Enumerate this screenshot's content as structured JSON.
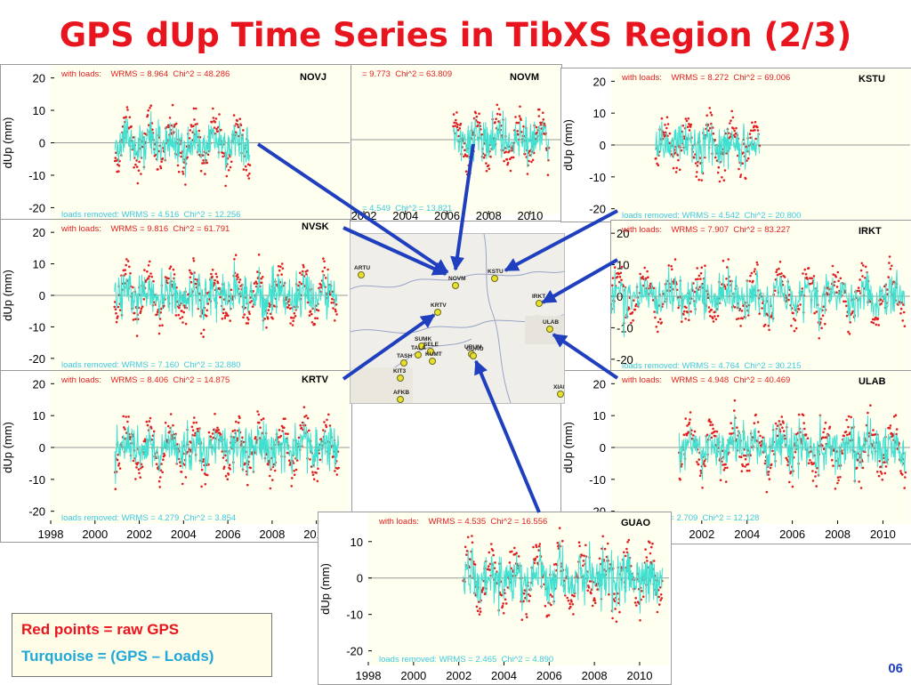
{
  "title": "GPS dUp Time Series in TibXS Region (2/3)",
  "slide_number": "06",
  "legend": {
    "red_label": "Red points = raw GPS",
    "turquoise_label": "Turquoise = (GPS – Loads)"
  },
  "colors": {
    "raw": "#e02020",
    "corrected": "#40e0d0",
    "title": "#e8151e",
    "arrow": "#1f3fbf",
    "plot_bg": "#fffff0"
  },
  "map": {
    "markers": [
      "ARTU",
      "NOVM",
      "KSTU",
      "IRKT",
      "KRTV",
      "ULAB",
      "SUMK",
      "SELE",
      "TALA",
      "KUMT",
      "TASH",
      "KIT3",
      "URUM",
      "GUAO",
      "AFKB",
      "XIAN"
    ]
  },
  "chart_data": [
    {
      "type": "scatter",
      "station": "NOVJ",
      "ylabel": "dUp (mm)",
      "ylim": [
        -24,
        24
      ],
      "yticks": [
        20,
        10,
        0,
        -10,
        -20
      ],
      "x_start": 2000.9,
      "x_end": 2007.0,
      "loads_text": "with loads:    WRMS = 8.964  Chi^2 = 48.286",
      "removed_text": "loads removed: WRMS = 4.516  Chi^2 = 12.256",
      "series": [
        {
          "name": "raw GPS"
        },
        {
          "name": "GPS – Loads"
        }
      ]
    },
    {
      "type": "scatter",
      "station": "NOVM",
      "ylabel": "",
      "ylim": [
        -24,
        24
      ],
      "yticks": [],
      "xticks": [
        2002,
        2004,
        2006,
        2008,
        2010
      ],
      "x_start": 2006.3,
      "x_end": 2010.9,
      "loads_text": "= 9.773  Chi^2 = 63.809",
      "removed_text": "= 4.549  Chi^2 = 13.821",
      "series": [
        {
          "name": "raw GPS"
        },
        {
          "name": "GPS – Loads"
        }
      ]
    },
    {
      "type": "scatter",
      "station": "KSTU",
      "ylabel": "dUp (mm)",
      "ylim": [
        -24,
        24
      ],
      "yticks": [
        20,
        10,
        0,
        -10,
        -20
      ],
      "x_start": 2000.0,
      "x_end": 2004.7,
      "loads_text": "with loads:    WRMS = 8.272  Chi^2 = 69.006",
      "removed_text": "loads removed: WRMS = 4.542  Chi^2 = 20.800",
      "series": [
        {
          "name": "raw GPS"
        },
        {
          "name": "GPS – Loads"
        }
      ]
    },
    {
      "type": "scatter",
      "station": "NVSK",
      "ylabel": "dUp (mm)",
      "ylim": [
        -24,
        24
      ],
      "yticks": [
        20,
        10,
        0,
        -10,
        -20
      ],
      "x_start": 2000.9,
      "x_end": 2011.0,
      "loads_text": "with loads:    WRMS = 9.816  Chi^2 = 61.791",
      "removed_text": "loads removed: WRMS = 7.160  Chi^2 = 32.880",
      "series": [
        {
          "name": "raw GPS"
        },
        {
          "name": "GPS – Loads"
        }
      ]
    },
    {
      "type": "scatter",
      "station": "IRKT",
      "ylabel": "",
      "ylim": [
        -24,
        24
      ],
      "yticks": [
        20,
        10,
        0,
        -10,
        -20
      ],
      "x_start": 1998.0,
      "x_end": 2011.0,
      "loads_text": "with loads:    WRMS = 7.907  Chi^2 = 83.227",
      "removed_text": "loads removed: WRMS = 4.764  Chi^2 = 30.215",
      "series": [
        {
          "name": "raw GPS"
        },
        {
          "name": "GPS – Loads"
        }
      ]
    },
    {
      "type": "scatter",
      "station": "KRTV",
      "ylabel": "dUp (mm)",
      "ylim": [
        -24,
        24
      ],
      "yticks": [
        20,
        10,
        0,
        -10,
        -20
      ],
      "xticks": [
        1998,
        2000,
        2002,
        2004,
        2006,
        2008,
        2010
      ],
      "x_start": 2000.9,
      "x_end": 2011.0,
      "loads_text": "with loads:    WRMS = 8.406  Chi^2 = 14.875",
      "removed_text": "loads removed: WRMS = 4.279  Chi^2 = 3.854",
      "series": [
        {
          "name": "raw GPS"
        },
        {
          "name": "GPS – Loads"
        }
      ]
    },
    {
      "type": "scatter",
      "station": "ULAB",
      "ylabel": "dUp (mm)",
      "ylim": [
        -24,
        24
      ],
      "yticks": [
        20,
        10,
        0,
        -10,
        -20
      ],
      "xticks": [
        2002,
        2004,
        2006,
        2008,
        2010
      ],
      "x_start": 2001.0,
      "x_end": 2011.0,
      "loads_text": "with loads:    WRMS = 4.948  Chi^2 = 40.469",
      "removed_text": "ved: WRMS = 2.709  Chi^2 = 12.128",
      "series": [
        {
          "name": "raw GPS"
        },
        {
          "name": "GPS – Loads"
        }
      ]
    },
    {
      "type": "scatter",
      "station": "GUAO",
      "ylabel": "dUp (mm)",
      "ylim": [
        -24,
        18
      ],
      "yticks": [
        10,
        0,
        -10,
        -20
      ],
      "xticks": [
        1998,
        2000,
        2002,
        2004,
        2006,
        2008,
        2010
      ],
      "x_start": 2002.2,
      "x_end": 2011.0,
      "loads_text": "with loads:    WRMS = 4.535  Chi^2 = 16.556",
      "removed_text": "loads removed: WRMS = 2.465  Chi^2 = 4.890",
      "series": [
        {
          "name": "raw GPS"
        },
        {
          "name": "GPS – Loads"
        }
      ]
    }
  ]
}
